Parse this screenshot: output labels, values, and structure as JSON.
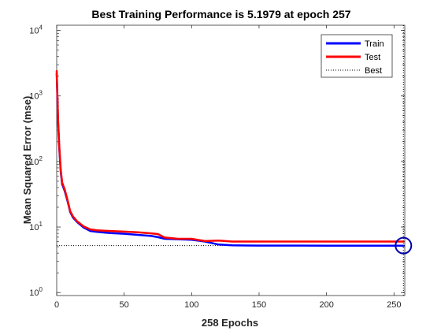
{
  "chart_data": {
    "type": "line",
    "title": "Best Training Performance is 5.1979 at epoch 257",
    "xlabel": "258 Epochs",
    "ylabel": "Mean Squared Error  (mse)",
    "yscale": "log",
    "xlim": [
      0,
      258
    ],
    "ylim": [
      0.9,
      12000
    ],
    "x_ticks": [
      0,
      50,
      100,
      150,
      200,
      250
    ],
    "y_ticks": [
      {
        "value": 1,
        "base": "10",
        "exp": "0"
      },
      {
        "value": 10,
        "base": "10",
        "exp": "1"
      },
      {
        "value": 100,
        "base": "10",
        "exp": "2"
      },
      {
        "value": 1000,
        "base": "10",
        "exp": "3"
      },
      {
        "value": 10000,
        "base": "10",
        "exp": "4"
      }
    ],
    "grid": false,
    "legend_position": "top-right",
    "series": [
      {
        "name": "Train",
        "color": "#0000ff",
        "x": [
          0,
          1,
          2,
          3,
          4,
          5,
          6,
          8,
          10,
          12,
          15,
          20,
          25,
          30,
          40,
          50,
          60,
          70,
          75,
          80,
          90,
          100,
          110,
          120,
          130,
          140,
          150,
          200,
          250,
          257
        ],
        "y": [
          2200,
          400,
          150,
          70,
          45,
          40,
          35,
          25,
          17,
          14,
          12,
          9.8,
          8.7,
          8.4,
          8.1,
          7.9,
          7.6,
          7.3,
          7.0,
          6.6,
          6.5,
          6.4,
          6.0,
          5.4,
          5.25,
          5.22,
          5.21,
          5.2,
          5.198,
          5.1979
        ]
      },
      {
        "name": "Test",
        "color": "#ff0000",
        "x": [
          0,
          1,
          2,
          3,
          4,
          5,
          6,
          8,
          10,
          12,
          15,
          20,
          25,
          30,
          40,
          50,
          60,
          70,
          75,
          80,
          90,
          100,
          110,
          120,
          130,
          140,
          150,
          200,
          250,
          257
        ],
        "y": [
          2400,
          450,
          160,
          75,
          48,
          42,
          37,
          26,
          17.5,
          14.5,
          12.3,
          10.2,
          9.2,
          8.9,
          8.7,
          8.5,
          8.3,
          8.0,
          7.8,
          6.9,
          6.6,
          6.6,
          6.1,
          6.2,
          6.0,
          6.0,
          6.0,
          6.0,
          6.0,
          6.0
        ]
      }
    ],
    "best": {
      "name": "Best",
      "epoch": 257,
      "value": 5.1979,
      "color": "#000000",
      "style": "dotted"
    }
  }
}
